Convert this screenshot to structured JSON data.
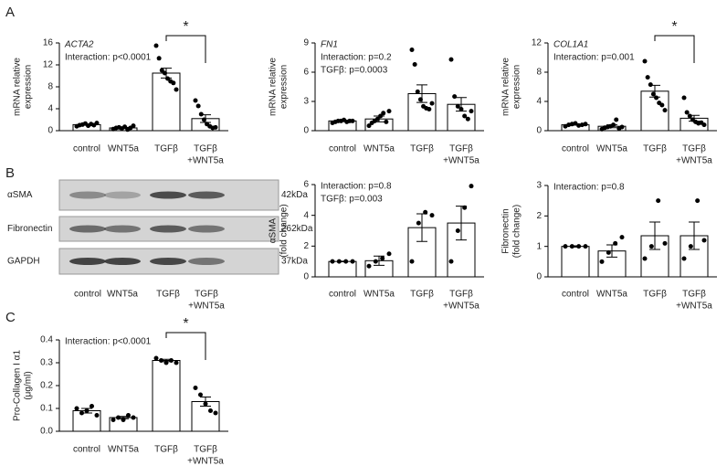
{
  "panel_labels": [
    "A",
    "B",
    "C"
  ],
  "blot": {
    "bands": [
      {
        "name": "αSMA",
        "size": "42kDa"
      },
      {
        "name": "Fibronectin",
        "size": "262kDa"
      },
      {
        "name": "GAPDH",
        "size": "37kDa"
      }
    ],
    "categories": [
      "control",
      "WNT5a",
      "TGFβ",
      [
        "TGFβ",
        "+WNT5a"
      ]
    ]
  },
  "chart_data": [
    {
      "type": "bar",
      "title": "ACTA2",
      "annotations": [
        "Interaction: p<0.0001"
      ],
      "ylabel": [
        "mRNA relative",
        "expression"
      ],
      "categories": [
        "control",
        "WNT5a",
        "TGFβ",
        [
          "TGFβ",
          "+WNT5a"
        ]
      ],
      "ylim": [
        0,
        16
      ],
      "yticks": [
        0,
        4,
        8,
        12,
        16
      ],
      "values": [
        1.1,
        0.5,
        10.5,
        2.2
      ],
      "errors": [
        0.1,
        0.1,
        0.9,
        0.7
      ],
      "points": [
        [
          0.8,
          1.0,
          1.1,
          1.3,
          0.9,
          1.2,
          1.0,
          1.4
        ],
        [
          0.3,
          0.5,
          0.6,
          0.4,
          0.7,
          0.2,
          0.5,
          0.9
        ],
        [
          15.5,
          13.2,
          11.0,
          10.5,
          9.5,
          9.0,
          8.7,
          7.5
        ],
        [
          5.5,
          4.5,
          3.0,
          2.0,
          1.2,
          0.8,
          0.5,
          0.6
        ]
      ],
      "significance": {
        "between": [
          2,
          3
        ],
        "label": "*"
      }
    },
    {
      "type": "bar",
      "title": "FN1",
      "annotations": [
        "Interaction: p=0.2",
        "TGFβ: p=0.0003"
      ],
      "ylabel": [
        "mRNA relative",
        "expression"
      ],
      "categories": [
        "control",
        "WNT5a",
        "TGFβ",
        [
          "TGFβ",
          "+WNT5a"
        ]
      ],
      "ylim": [
        0,
        9
      ],
      "yticks": [
        0,
        3,
        6,
        9
      ],
      "values": [
        1.0,
        1.2,
        3.8,
        2.7
      ],
      "errors": [
        0.05,
        0.3,
        0.9,
        0.7
      ],
      "points": [
        [
          0.8,
          0.9,
          1.0,
          1.0,
          1.1,
          0.9,
          1.0,
          1.0
        ],
        [
          0.5,
          0.8,
          1.0,
          1.2,
          1.5,
          1.8,
          0.9,
          2.0
        ],
        [
          8.3,
          6.8,
          4.0,
          3.2,
          2.5,
          2.3,
          2.2,
          2.8
        ],
        [
          7.3,
          3.5,
          2.5,
          2.2,
          1.5,
          1.2,
          2.0
        ]
      ]
    },
    {
      "type": "bar",
      "title": "COL1A1",
      "annotations": [
        "Interaction: p=0.001"
      ],
      "ylabel": [
        "mRNA relative",
        "expression"
      ],
      "categories": [
        "control",
        "WNT5a",
        "TGFβ",
        [
          "TGFβ",
          "+WNT5a"
        ]
      ],
      "ylim": [
        0,
        12
      ],
      "yticks": [
        0,
        4,
        8,
        12
      ],
      "values": [
        0.8,
        0.6,
        5.4,
        1.7
      ],
      "errors": [
        0.05,
        0.2,
        0.8,
        0.4
      ],
      "points": [
        [
          0.6,
          0.8,
          0.9,
          1.0,
          0.7,
          0.8,
          0.9
        ],
        [
          0.2,
          0.4,
          0.5,
          0.6,
          0.8,
          1.5,
          0.3,
          0.5
        ],
        [
          9.5,
          7.3,
          6.3,
          5.0,
          4.5,
          3.8,
          3.5,
          2.8
        ],
        [
          4.5,
          2.5,
          2.0,
          1.5,
          1.2,
          1.0,
          1.1,
          0.8
        ]
      ],
      "significance": {
        "between": [
          2,
          3
        ],
        "label": "*"
      }
    },
    {
      "type": "bar",
      "annotations": [
        "Interaction: p=0.8",
        "TGFβ: p=0.003"
      ],
      "ylabel": [
        "αSMA",
        "(fold change)"
      ],
      "categories": [
        "control",
        "WNT5a",
        "TGFβ",
        [
          "TGFβ",
          "+WNT5a"
        ]
      ],
      "ylim": [
        0,
        6
      ],
      "yticks": [
        0,
        2,
        4,
        6
      ],
      "values": [
        1.0,
        1.05,
        3.2,
        3.5
      ],
      "errors": [
        0.02,
        0.3,
        0.9,
        1.1
      ],
      "points": [
        [
          1,
          1,
          1,
          1
        ],
        [
          0.7,
          1.0,
          1.2,
          1.5
        ],
        [
          1.0,
          3.5,
          4.2,
          4.0
        ],
        [
          1.0,
          3.0,
          4.5,
          5.9
        ]
      ]
    },
    {
      "type": "bar",
      "annotations": [
        "Interaction: p=0.8"
      ],
      "ylabel": [
        "Fibronectin",
        "(fold change)"
      ],
      "categories": [
        "control",
        "WNT5a",
        "TGFβ",
        [
          "TGFβ",
          "+WNT5a"
        ]
      ],
      "ylim": [
        0,
        3
      ],
      "yticks": [
        0,
        1,
        2,
        3
      ],
      "values": [
        1.0,
        0.85,
        1.35,
        1.35
      ],
      "errors": [
        0.02,
        0.2,
        0.45,
        0.45
      ],
      "points": [
        [
          1,
          1,
          1,
          1
        ],
        [
          0.5,
          0.8,
          1.1,
          1.3
        ],
        [
          0.6,
          1.0,
          2.5,
          1.1
        ],
        [
          0.6,
          1.0,
          2.5,
          1.2
        ]
      ]
    },
    {
      "type": "bar",
      "annotations": [
        "Interaction: p<0.0001"
      ],
      "ylabel": [
        "Pro-Collagen I α1",
        "(μg/ml)"
      ],
      "categories": [
        "control",
        "WNT5a",
        "TGFβ",
        [
          "TGFβ",
          "+WNT5a"
        ]
      ],
      "ylim": [
        0,
        0.4
      ],
      "yticks": [
        {
          "value": 0,
          "label": "0.0"
        },
        0.1,
        0.2,
        0.3,
        0.4
      ],
      "values": [
        0.09,
        0.06,
        0.31,
        0.13
      ],
      "errors": [
        0.01,
        0.005,
        0.005,
        0.02
      ],
      "points": [
        [
          0.1,
          0.08,
          0.09,
          0.11,
          0.07
        ],
        [
          0.05,
          0.06,
          0.05,
          0.07,
          0.06
        ],
        [
          0.32,
          0.31,
          0.3,
          0.31,
          0.3
        ],
        [
          0.19,
          0.16,
          0.12,
          0.09,
          0.08
        ]
      ],
      "significance": {
        "between": [
          2,
          3
        ],
        "label": "*"
      }
    }
  ]
}
